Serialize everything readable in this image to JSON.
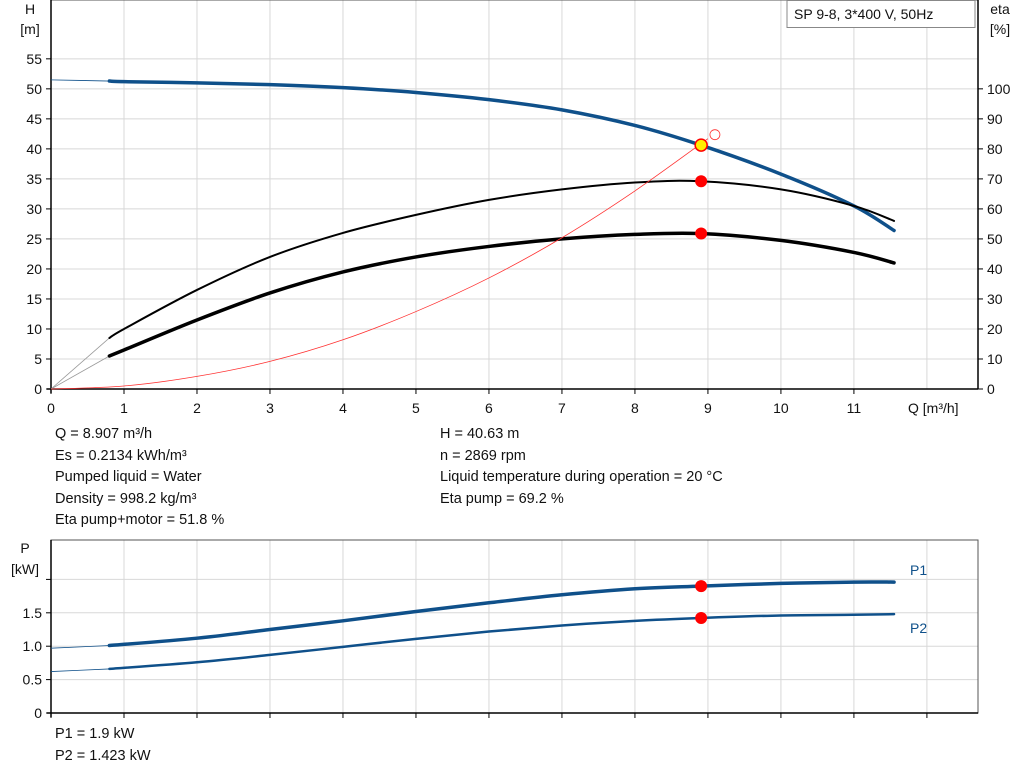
{
  "chart_data": [
    {
      "type": "line",
      "title": "SP 9-8, 3*400 V, 50Hz",
      "xlabel": "Q [m³/h]",
      "ylabel": "H [m]",
      "y2label": "eta [%]",
      "xlim": [
        0,
        12.7
      ],
      "ylim": [
        0,
        64.8
      ],
      "y2lim": [
        0,
        129.6
      ],
      "xticks": [
        0,
        1,
        2,
        3,
        4,
        5,
        6,
        7,
        8,
        9,
        10,
        11
      ],
      "yticks": [
        0,
        5,
        10,
        15,
        20,
        25,
        30,
        35,
        40,
        45,
        50,
        55
      ],
      "y2ticks": [
        0,
        10,
        20,
        30,
        40,
        50,
        60,
        70,
        80,
        90,
        100
      ],
      "series": [
        {
          "name": "H",
          "axis": "left",
          "color": "#0f508a",
          "x": [
            0,
            0.8,
            1,
            2,
            3,
            4,
            5,
            6,
            7,
            8,
            8.9,
            10,
            11,
            11.55
          ],
          "values": [
            51.5,
            51.3,
            51.2,
            51.0,
            50.7,
            50.2,
            49.4,
            48.2,
            46.5,
            43.9,
            40.63,
            35.8,
            30.5,
            26.4
          ]
        },
        {
          "name": "Eta pump",
          "axis": "right",
          "color": "#000000",
          "x": [
            0,
            0.8,
            1,
            2,
            3,
            4,
            5,
            6,
            7,
            8,
            8.9,
            10,
            11,
            11.55
          ],
          "values": [
            0,
            17,
            20,
            33,
            44,
            52,
            58,
            63,
            66.5,
            68.8,
            69.2,
            66.5,
            61,
            56
          ]
        },
        {
          "name": "Eta pump+motor",
          "axis": "right",
          "color": "#000000",
          "x": [
            0,
            0.8,
            1,
            2,
            3,
            4,
            5,
            6,
            7,
            8,
            8.9,
            10,
            11,
            11.55
          ],
          "values": [
            0,
            11,
            13,
            23,
            32,
            39,
            44,
            47.5,
            50,
            51.5,
            51.8,
            49.5,
            45.5,
            42
          ]
        },
        {
          "name": "System curve",
          "axis": "left",
          "color": "#ff3030",
          "x": [
            0,
            1,
            2,
            3,
            4,
            5,
            6,
            7,
            8,
            9
          ],
          "values": [
            0,
            0.5,
            2.1,
            4.6,
            8.2,
            12.9,
            18.5,
            25.2,
            33,
            41.7
          ]
        }
      ],
      "duty_point": {
        "Q": 8.907,
        "H": 40.63,
        "eta_pump": 69.2,
        "eta_total": 51.8
      }
    },
    {
      "type": "line",
      "ylabel": "P [kW]",
      "xlim": [
        0,
        12.7
      ],
      "ylim": [
        0,
        2.59
      ],
      "yticks": [
        0,
        0.5,
        1.0,
        1.5,
        2.0
      ],
      "ytick_labels": [
        "0",
        "0.5",
        "1.0",
        "1.5",
        ""
      ],
      "series": [
        {
          "name": "P1",
          "color": "#0f508a",
          "x": [
            0,
            0.8,
            2,
            3,
            4,
            5,
            6,
            7,
            8,
            8.9,
            10,
            11,
            11.55
          ],
          "values": [
            0.97,
            1.01,
            1.12,
            1.25,
            1.38,
            1.52,
            1.65,
            1.77,
            1.86,
            1.9,
            1.94,
            1.96,
            1.96
          ]
        },
        {
          "name": "P2",
          "color": "#0f508a",
          "x": [
            0,
            0.8,
            2,
            3,
            4,
            5,
            6,
            7,
            8,
            8.9,
            10,
            11,
            11.55
          ],
          "values": [
            0.62,
            0.66,
            0.76,
            0.87,
            0.99,
            1.11,
            1.22,
            1.31,
            1.38,
            1.423,
            1.46,
            1.47,
            1.48
          ]
        }
      ],
      "duty_point": {
        "Q": 8.907,
        "P1": 1.9,
        "P2": 1.423
      }
    }
  ],
  "labels": {
    "h_axis": "H",
    "h_unit": "[m]",
    "eta_axis": "eta",
    "eta_unit": "[%]",
    "q_axis": "Q [m³/h]",
    "p_axis": "P",
    "p_unit": "[kW]",
    "legend": "SP 9-8, 3*400 V, 50Hz",
    "p1": "P1",
    "p2": "P2"
  },
  "info_left": [
    "Q = 8.907 m³/h",
    "Es = 0.2134 kWh/m³",
    "Pumped liquid = Water",
    "Density = 998.2 kg/m³",
    "Eta pump+motor = 51.8 %"
  ],
  "info_right": [
    "H = 40.63 m",
    "n = 2869 rpm",
    "Liquid temperature during operation = 20 °C",
    "Eta pump = 69.2 %"
  ],
  "power_info": [
    "P1 = 1.9 kW",
    "P2 = 1.423 kW"
  ]
}
